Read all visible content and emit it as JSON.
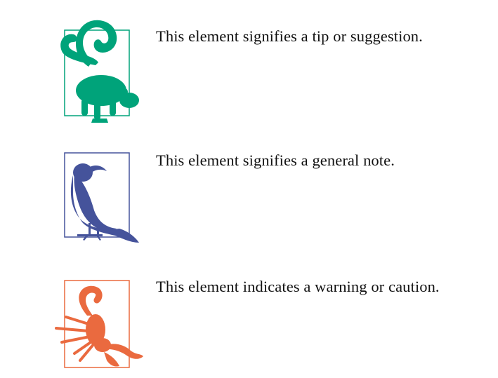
{
  "callouts": [
    {
      "type": "tip",
      "icon": "lemur-icon",
      "color": "#00a37a",
      "text": "This element signifies a tip or suggestion."
    },
    {
      "type": "note",
      "icon": "crow-icon",
      "color": "#45539b",
      "text": "This element signifies a general note."
    },
    {
      "type": "warning",
      "icon": "scorpion-icon",
      "color": "#ea6a3f",
      "text": "This element indicates a warning or caution."
    }
  ]
}
